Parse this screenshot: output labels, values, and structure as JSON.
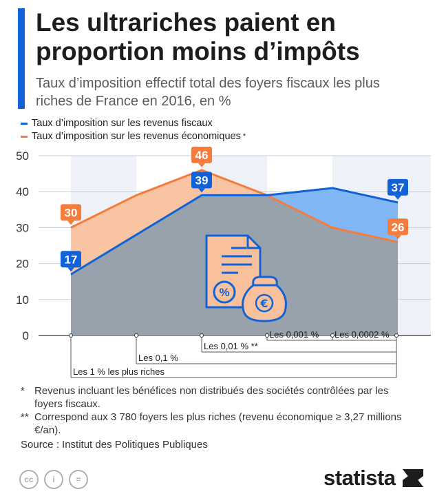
{
  "header": {
    "title": "Les ultrariches paient en proportion moins d’impôts",
    "subtitle": "Taux d’imposition effectif total des foyers fiscaux les plus riches de France en 2016, en %",
    "accent_color": "#1162d6"
  },
  "chart_data": {
    "type": "area",
    "title": "Les ultrariches paient en proportion moins d’impôts",
    "ylim": [
      0,
      50
    ],
    "y_ticks": [
      "0",
      "10",
      "20",
      "30",
      "40",
      "50"
    ],
    "category_labels": [
      "Les 1 % les plus riches",
      "Les 0,1 %",
      "Les 0,01 % **",
      "Les 0,001 %",
      "Les 0,0002 %"
    ],
    "x": [
      0,
      1,
      2,
      3,
      4,
      5
    ],
    "series": [
      {
        "name": "Taux d’imposition sur les revenus fiscaux",
        "color": "#1162d6",
        "fill": "#7ab3f5",
        "values": [
          17,
          28,
          39,
          39,
          41,
          37
        ],
        "labels": [
          {
            "index": 0,
            "text": "17"
          },
          {
            "index": 2,
            "text": "39"
          },
          {
            "index": 5,
            "text": "37"
          }
        ]
      },
      {
        "name": "Taux d’imposition sur les revenus économiques",
        "legend_suffix": " *",
        "color": "#f47c3c",
        "fill": "#f8c19c",
        "values": [
          30,
          39,
          46,
          39,
          30,
          26
        ],
        "labels": [
          {
            "index": 0,
            "text": "30"
          },
          {
            "index": 2,
            "text": "46"
          },
          {
            "index": 5,
            "text": "26"
          }
        ]
      }
    ],
    "overlap_fill": "#97a2ad"
  },
  "notes": [
    {
      "mark": "*",
      "text": "Revenus incluant les bénéfices non distribués des sociétés contrôlées par les foyers fiscaux."
    },
    {
      "mark": "**",
      "text": "Correspond aux 3 780 foyers les plus riches (revenu économique ≥ 3,27 millions €/an)."
    }
  ],
  "source": "Source : Institut des Politiques Publiques",
  "footer": {
    "license_icons": [
      "cc-icon",
      "by-icon",
      "nd-icon"
    ],
    "license_labels": [
      "cc",
      "i",
      "="
    ],
    "brand": "statista"
  }
}
